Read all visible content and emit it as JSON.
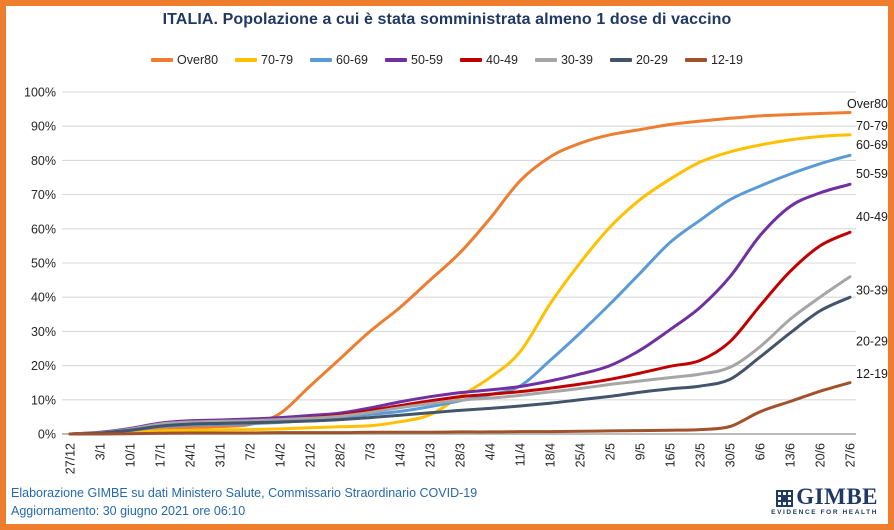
{
  "colors": {
    "border": "#EE7D2E",
    "title_text": "#1F3864",
    "footer_text": "#2569AE",
    "grid": "#D9D9D9",
    "axis": "#A6A6A6",
    "tick_text": "#262626",
    "logo_navy": "#1F3864"
  },
  "chart_data": {
    "type": "line",
    "title": "ITALIA. Popolazione a cui è stata somministrata almeno 1 dose di vaccino",
    "xlabel": "",
    "ylabel": "",
    "ylim": [
      0,
      100
    ],
    "grid": true,
    "legend_position": "top",
    "y_tick_labels": [
      "0%",
      "10%",
      "20%",
      "30%",
      "40%",
      "50%",
      "60%",
      "70%",
      "80%",
      "90%",
      "100%"
    ],
    "x_tick_labels": [
      "27/12",
      "3/1",
      "10/1",
      "17/1",
      "24/1",
      "31/1",
      "7/2",
      "14/2",
      "21/2",
      "28/2",
      "7/3",
      "14/3",
      "21/3",
      "28/3",
      "4/4",
      "11/4",
      "18/4",
      "25/4",
      "2/5",
      "9/5",
      "16/5",
      "23/5",
      "30/5",
      "6/6",
      "13/6",
      "20/6",
      "27/6"
    ],
    "series": [
      {
        "name": "Over80",
        "color": "#ED7D31",
        "end_label_y": 96.5,
        "values": [
          0,
          0.3,
          0.8,
          1.3,
          1.8,
          2.2,
          2.8,
          6,
          14,
          22,
          30,
          37,
          45,
          53,
          63,
          74,
          81,
          85,
          87.5,
          89,
          90.5,
          91.5,
          92.3,
          93,
          93.4,
          93.7,
          94
        ]
      },
      {
        "name": "70-79",
        "color": "#FFC000",
        "end_label_y": 90,
        "values": [
          0,
          0.2,
          0.5,
          0.9,
          1.1,
          1.2,
          1.3,
          1.5,
          1.8,
          2.1,
          2.4,
          3.6,
          5.6,
          11,
          16.5,
          24,
          38,
          50,
          60.5,
          68.5,
          74.5,
          79.5,
          82.5,
          84.5,
          86,
          87,
          87.5
        ]
      },
      {
        "name": "60-69",
        "color": "#5B9BD5",
        "end_label_y": 84.5,
        "values": [
          0,
          0.3,
          1,
          2.1,
          2.6,
          2.8,
          3,
          3.4,
          4.1,
          4.9,
          5.7,
          6.6,
          8,
          9.7,
          11.5,
          14,
          21.5,
          29.5,
          38,
          47,
          56,
          62.5,
          68.5,
          72.5,
          76,
          79,
          81.5
        ]
      },
      {
        "name": "50-59",
        "color": "#7030A0",
        "end_label_y": 76,
        "values": [
          0,
          0.5,
          1.6,
          3.2,
          3.9,
          4.1,
          4.4,
          4.8,
          5.4,
          6.1,
          7.6,
          9.4,
          10.9,
          12.1,
          12.9,
          13.9,
          15.5,
          17.5,
          20,
          24.5,
          30.5,
          37,
          46,
          58,
          66.5,
          70.5,
          73
        ]
      },
      {
        "name": "40-49",
        "color": "#C00000",
        "end_label_y": 63.5,
        "values": [
          0,
          0.4,
          1.3,
          2.7,
          3.3,
          3.5,
          3.7,
          4.1,
          4.7,
          5.5,
          6.8,
          8.3,
          9.7,
          10.9,
          11.6,
          12.4,
          13.4,
          14.6,
          16,
          17.8,
          19.8,
          21.5,
          27,
          37.5,
          47.5,
          55,
          59
        ]
      },
      {
        "name": "30-39",
        "color": "#A6A6A6",
        "end_label_y": 42,
        "values": [
          0,
          0.4,
          1.4,
          2.9,
          3.5,
          3.7,
          3.9,
          4.2,
          4.6,
          5.2,
          6.3,
          7.7,
          8.9,
          9.9,
          10.5,
          11.3,
          12.3,
          13.3,
          14.5,
          15.5,
          16.5,
          17.5,
          19.5,
          25.5,
          33.5,
          40,
          46
        ]
      },
      {
        "name": "20-29",
        "color": "#44546A",
        "end_label_y": 27,
        "values": [
          0,
          0.3,
          1.1,
          2.3,
          2.9,
          3.1,
          3.3,
          3.5,
          3.8,
          4.2,
          4.8,
          5.5,
          6.2,
          6.9,
          7.5,
          8.2,
          9,
          10,
          11,
          12.2,
          13.2,
          14,
          16,
          22.5,
          29.5,
          36,
          40
        ]
      },
      {
        "name": "12-19",
        "color": "#A0522D",
        "end_label_y": 17.5,
        "values": [
          0,
          0,
          0.1,
          0.2,
          0.3,
          0.3,
          0.3,
          0.4,
          0.4,
          0.4,
          0.5,
          0.5,
          0.5,
          0.6,
          0.6,
          0.7,
          0.7,
          0.8,
          0.9,
          1,
          1.1,
          1.3,
          2.2,
          6.5,
          9.5,
          12.5,
          15
        ]
      }
    ]
  },
  "footer": {
    "line1": "Elaborazione GIMBE su dati Ministero Salute, Commissario Straordinario COVID-19",
    "line2": "Aggiornamento: 30 giugno 2021 ore 06:10"
  },
  "logo": {
    "name": "GIMBE",
    "tagline": "EVIDENCE FOR HEALTH"
  }
}
